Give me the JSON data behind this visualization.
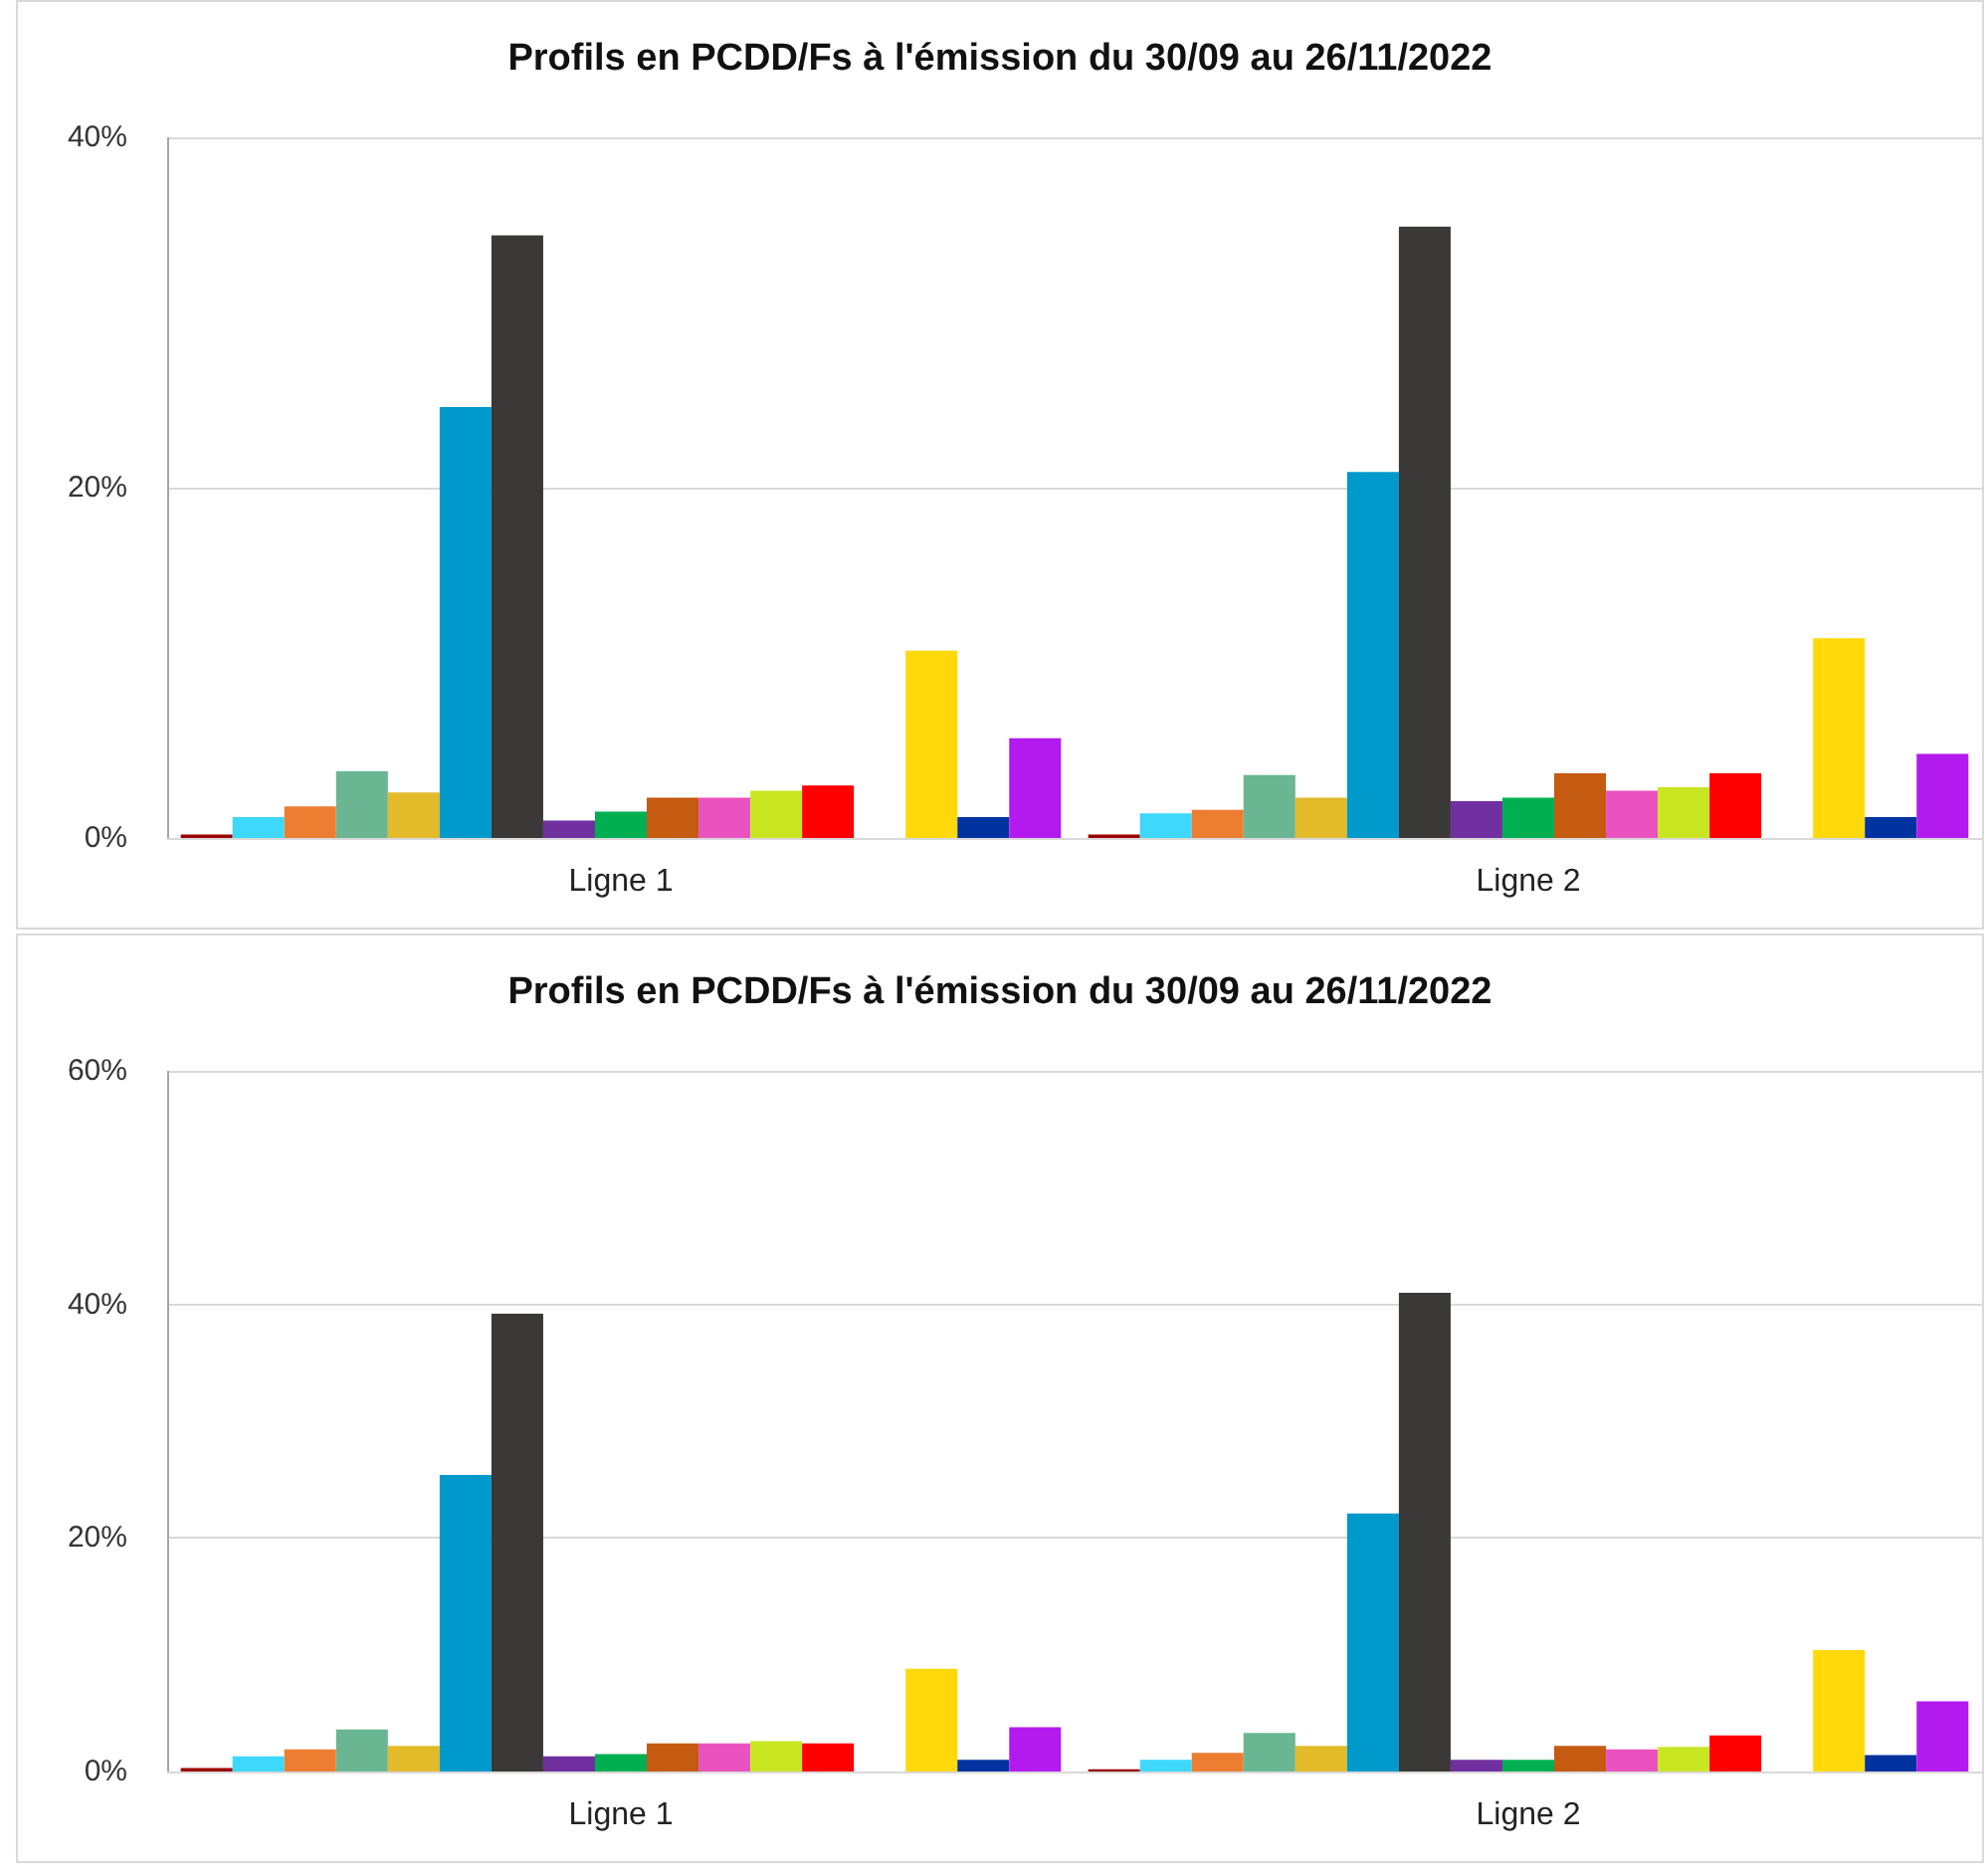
{
  "chart_data": [
    {
      "type": "bar",
      "title": "Profils en PCDD/Fs à l'émission du 30/09 au 26/11/2022",
      "categories": [
        "Ligne 1",
        "Ligne 2"
      ],
      "ylim": [
        0,
        40
      ],
      "yticks": [
        {
          "value": 0,
          "label": "0%"
        },
        {
          "value": 20,
          "label": "20%"
        },
        {
          "value": 40,
          "label": "40%"
        }
      ],
      "grid": true,
      "series": [
        {
          "color": "#9b0000",
          "values": [
            0.2,
            0.2
          ]
        },
        {
          "color": "#3dd8fc",
          "values": [
            1.2,
            1.4
          ]
        },
        {
          "color": "#ed7d31",
          "values": [
            1.8,
            1.6
          ]
        },
        {
          "color": "#6ab692",
          "values": [
            3.8,
            3.6
          ]
        },
        {
          "color": "#e2ba2a",
          "values": [
            2.6,
            2.3
          ]
        },
        {
          "color": "#0099cc",
          "values": [
            24.6,
            20.9
          ]
        },
        {
          "color": "#3a3938",
          "values": [
            34.4,
            34.9
          ]
        },
        {
          "color": "#7030a0",
          "values": [
            1.0,
            2.1
          ]
        },
        {
          "color": "#00b050",
          "values": [
            1.5,
            2.3
          ]
        },
        {
          "color": "#c55a11",
          "values": [
            2.3,
            3.7
          ]
        },
        {
          "color": "#ea52bf",
          "values": [
            2.3,
            2.7
          ]
        },
        {
          "color": "#c9e623",
          "values": [
            2.7,
            2.9
          ]
        },
        {
          "color": "#ff0000",
          "values": [
            3.0,
            3.7
          ]
        },
        {
          "values": [
            null,
            null
          ]
        },
        {
          "color": "#ffd90a",
          "values": [
            10.7,
            11.4
          ]
        },
        {
          "color": "#0033a0",
          "values": [
            1.2,
            1.2
          ]
        },
        {
          "color": "#b31aee",
          "values": [
            5.7,
            4.8
          ]
        }
      ]
    },
    {
      "type": "bar",
      "title": "Profils en PCDD/Fs à l'émission du 30/09 au 26/11/2022",
      "categories": [
        "Ligne 1",
        "Ligne 2"
      ],
      "ylim": [
        0,
        60
      ],
      "yticks": [
        {
          "value": 0,
          "label": "0%"
        },
        {
          "value": 20,
          "label": "20%"
        },
        {
          "value": 40,
          "label": "40%"
        },
        {
          "value": 60,
          "label": "60%"
        }
      ],
      "grid": true,
      "series": [
        {
          "color": "#9b0000",
          "values": [
            0.3,
            0.2
          ]
        },
        {
          "color": "#3dd8fc",
          "values": [
            1.3,
            1.0
          ]
        },
        {
          "color": "#ed7d31",
          "values": [
            1.9,
            1.6
          ]
        },
        {
          "color": "#6ab692",
          "values": [
            3.6,
            3.3
          ]
        },
        {
          "color": "#e2ba2a",
          "values": [
            2.2,
            2.2
          ]
        },
        {
          "color": "#0099cc",
          "values": [
            25.4,
            22.1
          ]
        },
        {
          "color": "#3a3938",
          "values": [
            39.2,
            41.0
          ]
        },
        {
          "color": "#7030a0",
          "values": [
            1.3,
            1.0
          ]
        },
        {
          "color": "#00b050",
          "values": [
            1.5,
            1.0
          ]
        },
        {
          "color": "#c55a11",
          "values": [
            2.4,
            2.2
          ]
        },
        {
          "color": "#ea52bf",
          "values": [
            2.4,
            1.9
          ]
        },
        {
          "color": "#c9e623",
          "values": [
            2.6,
            2.1
          ]
        },
        {
          "color": "#ff0000",
          "values": [
            2.4,
            3.1
          ]
        },
        {
          "values": [
            null,
            null
          ]
        },
        {
          "color": "#ffd90a",
          "values": [
            8.8,
            10.4
          ]
        },
        {
          "color": "#0033a0",
          "values": [
            1.0,
            1.4
          ]
        },
        {
          "color": "#b31aee",
          "values": [
            3.8,
            6.0
          ]
        }
      ]
    }
  ]
}
